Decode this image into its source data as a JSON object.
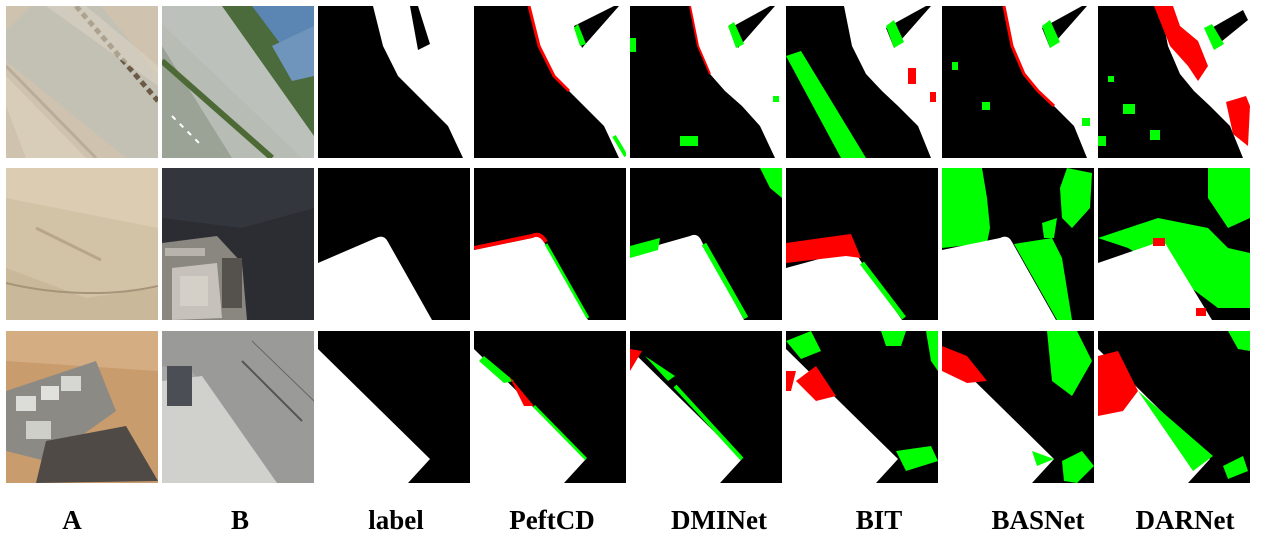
{
  "columns": [
    "A",
    "B",
    "label",
    "PeftCD",
    "DMINet",
    "BIT",
    "BASNet",
    "DARNet"
  ],
  "legend_colors": {
    "unchanged": "#000000",
    "changed": "#ffffff",
    "false_positive": "#ff0000",
    "false_negative": "#00ff00"
  },
  "rows": [
    {
      "row": 1,
      "scene": "road and rooftops"
    },
    {
      "row": 2,
      "scene": "building corner on dark ground"
    },
    {
      "row": 3,
      "scene": "building wedge on sandy ground"
    }
  ]
}
